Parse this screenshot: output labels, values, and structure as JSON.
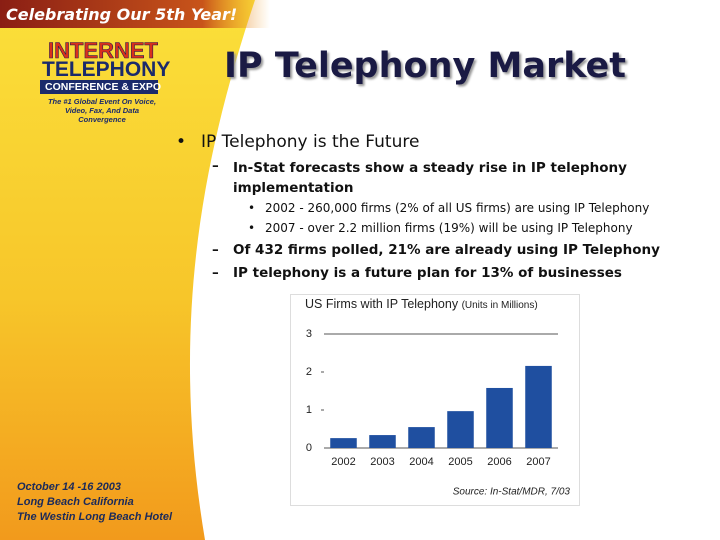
{
  "banner": "Celebrating Our 5th Year!",
  "logo": {
    "line1": "INTERNET",
    "line2": "TELEPHONY",
    "line3": "CONFERENCE & EXPO",
    "tagline": "The #1 Global Event On Voice, Video, Fax, And Data Convergence"
  },
  "event": [
    "October 14 -16 2003",
    "Long Beach California",
    "The Westin Long Beach Hotel"
  ],
  "title": "IP Telephony Market",
  "bullets": [
    {
      "text": "IP Telephony is the Future",
      "items": [
        {
          "text": "In-Stat forecasts show a steady rise in IP telephony implementation",
          "items": [
            "2002 - 260,000 firms (2% of all US firms) are using IP Telephony",
            "2007 - over 2.2 million firms (19%) will be using IP Telephony"
          ]
        },
        {
          "text": "Of 432 firms polled, 21% are already using IP Telephony"
        },
        {
          "text": "IP telephony is a future plan for 13% of businesses"
        }
      ]
    }
  ],
  "chart_data": {
    "type": "bar",
    "title": "US Firms with IP Telephony",
    "subtitle": "(Units in Millions)",
    "categories": [
      "2002",
      "2003",
      "2004",
      "2005",
      "2006",
      "2007"
    ],
    "values": [
      0.26,
      0.34,
      0.55,
      0.97,
      1.58,
      2.16
    ],
    "color": "#1f4fa0",
    "ylim": [
      0,
      3
    ],
    "yticks": [
      0,
      1,
      2,
      3
    ],
    "source": "Source: In-Stat/MDR, 7/03"
  }
}
